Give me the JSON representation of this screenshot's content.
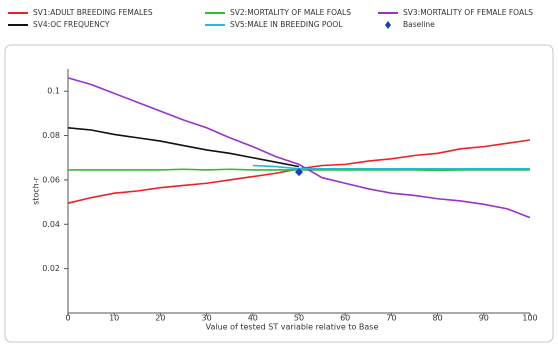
{
  "chart_data": {
    "type": "line",
    "x": [
      0,
      5,
      10,
      15,
      20,
      25,
      30,
      35,
      40,
      45,
      50,
      55,
      60,
      65,
      70,
      75,
      80,
      85,
      90,
      95,
      100
    ],
    "series": [
      {
        "name": "SV1:ADULT BREEDING FEMALES",
        "color": "#ee2222",
        "values": [
          0.0495,
          0.052,
          0.054,
          0.055,
          0.0565,
          0.0575,
          0.0585,
          0.06,
          0.0615,
          0.063,
          0.065,
          0.0665,
          0.067,
          0.0685,
          0.0695,
          0.071,
          0.072,
          0.074,
          0.075,
          0.0765,
          0.078
        ]
      },
      {
        "name": "SV2:MORTALITY OF MALE FOALS",
        "color": "#33bb33",
        "values": [
          0.0645,
          0.0645,
          0.0645,
          0.0645,
          0.0645,
          0.0648,
          0.0645,
          0.0648,
          0.0645,
          0.0645,
          0.0645,
          0.0645,
          0.0645,
          0.0645,
          0.0645,
          0.0645,
          0.0643,
          0.0645,
          0.0645,
          0.0645,
          0.0645
        ]
      },
      {
        "name": "SV3:MORTALITY OF FEMALE FOALS",
        "color": "#9933cc",
        "values": [
          0.106,
          0.103,
          0.099,
          0.095,
          0.091,
          0.087,
          0.0835,
          0.079,
          0.075,
          0.0705,
          0.067,
          0.061,
          0.0585,
          0.056,
          0.054,
          0.053,
          0.0515,
          0.0505,
          0.049,
          0.047,
          0.043
        ]
      },
      {
        "name": "SV4:OC FREQUENCY",
        "color": "#111111",
        "values": [
          0.0835,
          0.0825,
          0.0805,
          0.079,
          0.0775,
          0.0755,
          0.0735,
          0.072,
          0.07,
          0.068,
          0.066,
          null,
          null,
          null,
          null,
          null,
          null,
          null,
          null,
          null,
          null
        ]
      },
      {
        "name": "SV5:MALE IN BREEDING POOL",
        "color": "#22bbdd",
        "values": [
          null,
          null,
          null,
          null,
          null,
          null,
          null,
          null,
          0.0665,
          0.066,
          0.065,
          0.065,
          0.065,
          0.065,
          0.065,
          0.065,
          0.065,
          0.065,
          0.065,
          0.065,
          0.065
        ]
      }
    ],
    "baseline": {
      "name": "Baseline",
      "x": 50,
      "y": 0.0635,
      "color": "#1a3fc0"
    },
    "xlabel": "Value of tested ST variable relative to Base",
    "ylabel": "stoch-r",
    "xlim": [
      0,
      100
    ],
    "xticks": [
      0,
      10,
      20,
      30,
      40,
      50,
      60,
      70,
      80,
      90,
      100
    ],
    "ylim": [
      0,
      0.11
    ],
    "yticks": [
      0.02,
      0.04,
      0.06,
      0.08,
      0.1
    ],
    "grid": false
  }
}
